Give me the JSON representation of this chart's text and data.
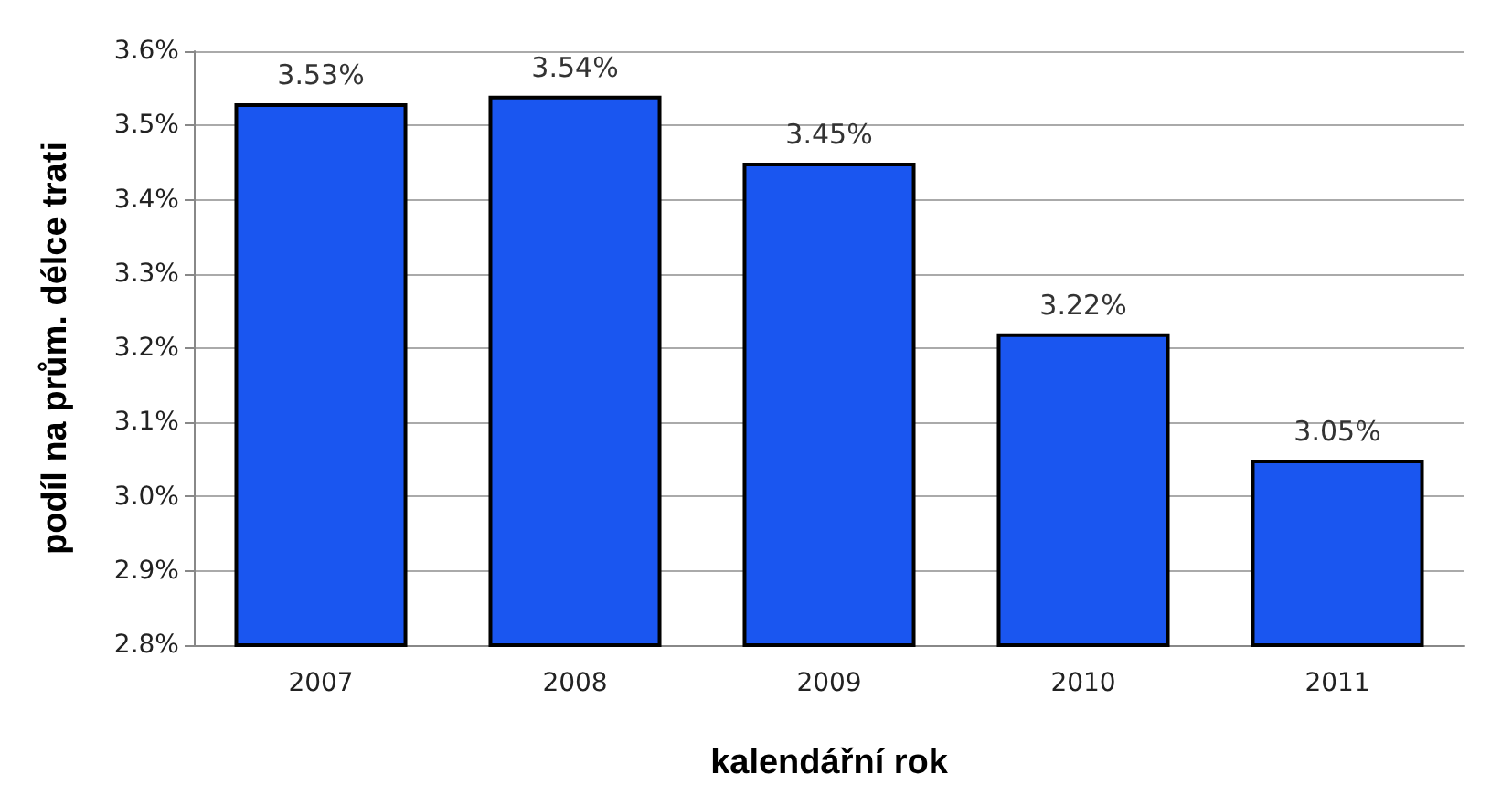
{
  "chart_data": {
    "type": "bar",
    "xlabel": "kalendářní rok",
    "ylabel": "podíl na prům. délce trati",
    "categories": [
      "2007",
      "2008",
      "2009",
      "2010",
      "2011"
    ],
    "values": [
      3.53,
      3.54,
      3.45,
      3.22,
      3.05
    ],
    "value_labels": [
      "3.53%",
      "3.54%",
      "3.45%",
      "3.22%",
      "3.05%"
    ],
    "color": "#1a56f0",
    "ylim": [
      2.8,
      3.6
    ],
    "yticks": [
      {
        "value": 2.8,
        "label": "2.8%"
      },
      {
        "value": 2.9,
        "label": "2.9%"
      },
      {
        "value": 3.0,
        "label": "3.0%"
      },
      {
        "value": 3.1,
        "label": "3.1%"
      },
      {
        "value": 3.2,
        "label": "3.2%"
      },
      {
        "value": 3.3,
        "label": "3.3%"
      },
      {
        "value": 3.4,
        "label": "3.4%"
      },
      {
        "value": 3.5,
        "label": "3.5%"
      },
      {
        "value": 3.6,
        "label": "3.6%"
      }
    ],
    "grid": "y"
  }
}
